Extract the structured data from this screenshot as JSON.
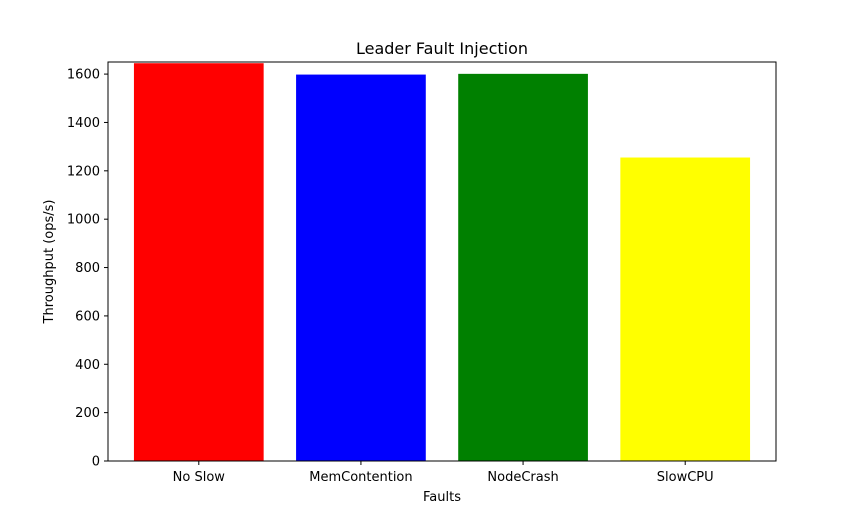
{
  "chart_data": {
    "type": "bar",
    "title": "Leader Fault Injection",
    "xlabel": "Faults",
    "ylabel": "Throughput (ops/s)",
    "categories": [
      "No Slow",
      "MemContention",
      "NodeCrash",
      "SlowCPU"
    ],
    "values": [
      1645,
      1598,
      1601,
      1255
    ],
    "colors": [
      "#ff0000",
      "#0000ff",
      "#008000",
      "#ffff00"
    ],
    "ylim": [
      0,
      1650
    ],
    "yticks": [
      0,
      200,
      400,
      600,
      800,
      1000,
      1200,
      1400,
      1600
    ],
    "grid": false,
    "legend": "none"
  }
}
